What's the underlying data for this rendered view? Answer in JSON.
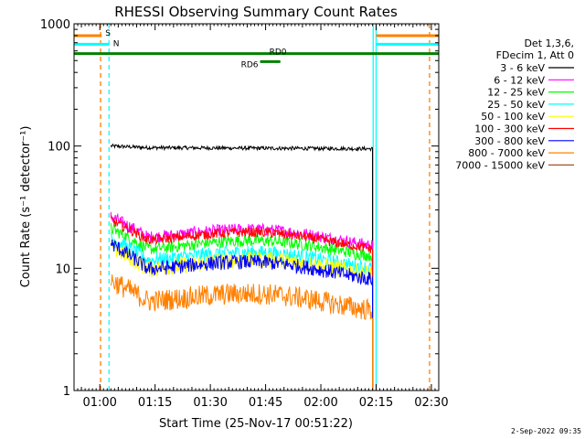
{
  "chart_data": {
    "type": "line",
    "title": "RHESSI Observing Summary Count Rates",
    "xlabel": "Start Time (25-Nov-17 00:51:22)",
    "ylabel": "Count Rate (s⁻¹ detector⁻¹)",
    "y_scale": "log",
    "ylim": [
      1,
      1000
    ],
    "xlim_minutes": [
      53,
      152
    ],
    "x_ticks": [
      {
        "m": 60,
        "label": "01:00"
      },
      {
        "m": 75,
        "label": "01:15"
      },
      {
        "m": 90,
        "label": "01:30"
      },
      {
        "m": 105,
        "label": "01:45"
      },
      {
        "m": 120,
        "label": "02:00"
      },
      {
        "m": 135,
        "label": "02:15"
      },
      {
        "m": 150,
        "label": "02:30"
      }
    ],
    "y_ticks": [
      {
        "v": 1,
        "label": "1"
      },
      {
        "v": 10,
        "label": "10"
      },
      {
        "v": 100,
        "label": "100"
      },
      {
        "v": 1000,
        "label": "1000"
      }
    ],
    "legend_header": [
      "Det 1,3,6,",
      "FDecim 1, Att 0"
    ],
    "data_range_minutes": [
      63,
      134
    ],
    "series": [
      {
        "name": "3 - 6 keV",
        "color": "#000000",
        "start": 100,
        "plateau": 97,
        "end": 95,
        "noise": 0.015
      },
      {
        "name": "6 - 12 keV",
        "color": "#ff00ff",
        "start": 30,
        "plateau": 20,
        "end": 17,
        "noise": 0.05
      },
      {
        "name": "12 - 25 keV",
        "color": "#00ff00",
        "start": 24,
        "plateau": 16,
        "end": 14,
        "noise": 0.05
      },
      {
        "name": "25 - 50 keV",
        "color": "#00ffff",
        "start": 20,
        "plateau": 13,
        "end": 11,
        "noise": 0.06
      },
      {
        "name": "50 - 100 keV",
        "color": "#ffff00",
        "start": 17,
        "plateau": 11,
        "end": 10,
        "noise": 0.07
      },
      {
        "name": "100 - 300 keV",
        "color": "#ff0000",
        "start": 28,
        "plateau": 19,
        "end": 16,
        "noise": 0.04
      },
      {
        "name": "300 - 800 keV",
        "color": "#0000ff",
        "start": 18,
        "plateau": 11,
        "end": 9,
        "noise": 0.06
      },
      {
        "name": "800 - 7000 keV",
        "color": "#ff8000",
        "start": 9,
        "plateau": 6,
        "end": 5,
        "noise": 0.09
      },
      {
        "name": "7000 - 15000 keV",
        "color": "#a0522d",
        "start": null,
        "plateau": null,
        "end": null,
        "noise": 0
      }
    ],
    "markers": [
      {
        "label": "S",
        "color": "#ff8000",
        "from_m": 53,
        "to_m": 60.5,
        "y": 800
      },
      {
        "label": "S",
        "color": "#ff8000",
        "from_m": 135,
        "to_m": 152,
        "y": 800
      },
      {
        "label": "N",
        "color": "#00ffff",
        "from_m": 53,
        "to_m": 62.5,
        "y": 680
      },
      {
        "label": "N",
        "color": "#00ffff",
        "from_m": 135,
        "to_m": 152,
        "y": 680
      },
      {
        "label": "RD0",
        "color": "#008000",
        "from_m": 53,
        "to_m": 152,
        "y": 570
      },
      {
        "label": "RD6",
        "color": "#008000",
        "from_m": 103.5,
        "to_m": 109,
        "y": 490
      }
    ],
    "vlines": [
      {
        "m": 60.2,
        "color": "#ff8000",
        "style": "dash"
      },
      {
        "m": 62.5,
        "color": "#00ffff",
        "style": "dash"
      },
      {
        "m": 134.2,
        "color": "#00ffff",
        "style": "solid"
      },
      {
        "m": 135.0,
        "color": "#00ffff",
        "style": "solid"
      },
      {
        "m": 149.5,
        "color": "#ff8000",
        "style": "dash"
      }
    ]
  },
  "footer": {
    "timestamp": "2-Sep-2022 09:35"
  }
}
